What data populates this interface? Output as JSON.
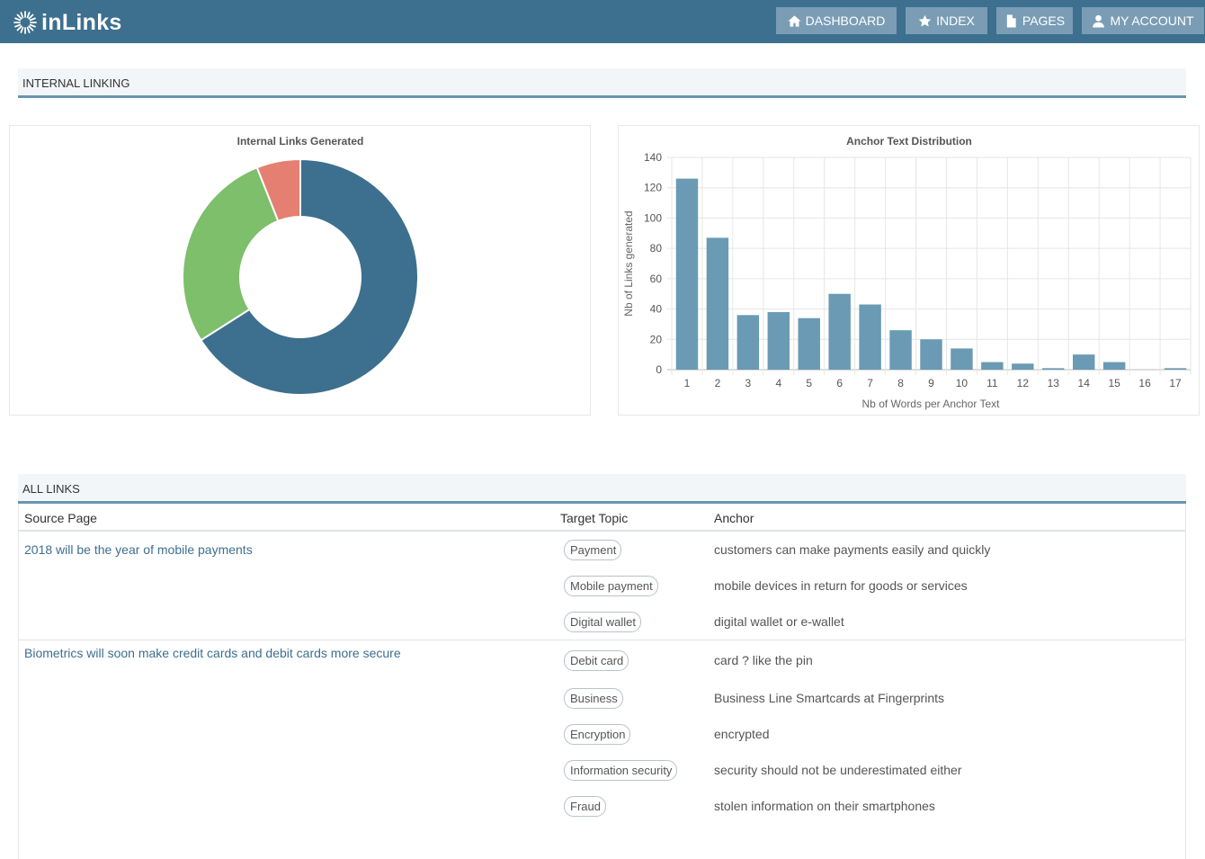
{
  "app": {
    "name": "inLinks",
    "logo_icon": "sunburst-logo-icon"
  },
  "nav": {
    "items": [
      {
        "label": "DASHBOARD",
        "icon": "home-icon"
      },
      {
        "label": "INDEX",
        "icon": "star-icon"
      },
      {
        "label": "PAGES",
        "icon": "file-icon"
      },
      {
        "label": "MY ACCOUNT",
        "icon": "user-icon"
      }
    ]
  },
  "sections": {
    "internal_linking": "INTERNAL LINKING",
    "all_links": "ALL LINKS"
  },
  "colors": {
    "primary": "#3d6f8e",
    "bar": "#6a9ab4",
    "green": "#7dbf6b",
    "red": "#e57f72"
  },
  "chart_data": [
    {
      "type": "pie",
      "title": "Internal Links Generated",
      "slices": [
        {
          "value": 66,
          "color": "#3d6f8e"
        },
        {
          "value": 28,
          "color": "#7dbf6b"
        },
        {
          "value": 6,
          "color": "#e57f72"
        }
      ]
    },
    {
      "type": "bar",
      "title": "Anchor Text Distribution",
      "xlabel": "Nb of Words per Anchor Text",
      "ylabel": "Nb of Links generated",
      "categories": [
        "1",
        "2",
        "3",
        "4",
        "5",
        "6",
        "7",
        "8",
        "9",
        "10",
        "11",
        "12",
        "13",
        "14",
        "15",
        "16",
        "17"
      ],
      "values": [
        126,
        87,
        36,
        38,
        34,
        50,
        43,
        26,
        20,
        14,
        5,
        4,
        1,
        10,
        5,
        0,
        1
      ],
      "ylim": [
        0,
        140
      ],
      "yticks": [
        "0",
        "20",
        "40",
        "60",
        "80",
        "100",
        "120",
        "140"
      ],
      "grid": true
    }
  ],
  "table": {
    "headers": {
      "source": "Source Page",
      "topic": "Target Topic",
      "anchor": "Anchor"
    },
    "groups": [
      {
        "source": "2018 will be the year of mobile payments",
        "links": [
          {
            "topic": "Payment",
            "anchor": "customers can make payments easily and quickly"
          },
          {
            "topic": "Mobile payment",
            "anchor": "mobile devices in return for goods or services"
          },
          {
            "topic": "Digital wallet",
            "anchor": "digital wallet or e-wallet"
          }
        ]
      },
      {
        "source": "Biometrics will soon make credit cards and debit cards more secure",
        "links": [
          {
            "topic": "Debit card",
            "anchor": "card ? like the pin"
          },
          {
            "topic": "Business",
            "anchor": "Business Line Smartcards at Fingerprints"
          },
          {
            "topic": "Encryption",
            "anchor": "encrypted"
          },
          {
            "topic": "Information security",
            "anchor": "security should not be underestimated either"
          },
          {
            "topic": "Fraud",
            "anchor": "stolen information on their smartphones"
          }
        ]
      }
    ]
  }
}
